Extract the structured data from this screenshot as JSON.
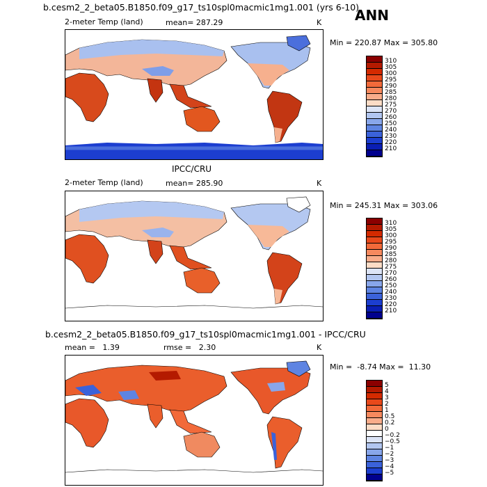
{
  "season": "ANN",
  "model_title": "b.cesm2_2_beta05.B1850.f09_g17_ts10spl0macmic1mg1.001 (yrs 6-10)",
  "panels": [
    {
      "variable": "2-meter Temp (land)",
      "mean_text": "mean= 287.29",
      "units": "K",
      "minmax": "Min = 220.87 Max = 305.80",
      "levels": [
        "310",
        "305",
        "300",
        "295",
        "290",
        "285",
        "280",
        "275",
        "270",
        "260",
        "250",
        "240",
        "230",
        "220",
        "210"
      ],
      "colors": [
        "#8b0000",
        "#b41a00",
        "#d42a00",
        "#e8491b",
        "#f26a3a",
        "#f6895e",
        "#f9ac8a",
        "#fcdcc6",
        "#dce4f6",
        "#b2c6f0",
        "#88a6ea",
        "#5e84e2",
        "#3b62da",
        "#1c3ed0",
        "#0a1eb4",
        "#00008e"
      ]
    },
    {
      "heading": "IPCC/CRU",
      "variable": "2-meter Temp (land)",
      "mean_text": "mean= 285.90",
      "units": "K",
      "minmax": "Min = 245.31 Max = 303.06",
      "levels": [
        "310",
        "305",
        "300",
        "295",
        "290",
        "285",
        "280",
        "275",
        "270",
        "260",
        "250",
        "240",
        "230",
        "220",
        "210"
      ],
      "colors": [
        "#8b0000",
        "#b41a00",
        "#d42a00",
        "#e8491b",
        "#f26a3a",
        "#f6895e",
        "#f9ac8a",
        "#fcdcc6",
        "#dce4f6",
        "#b2c6f0",
        "#88a6ea",
        "#5e84e2",
        "#3b62da",
        "#1c3ed0",
        "#0a1eb4",
        "#00008e"
      ]
    },
    {
      "heading": "b.cesm2_2_beta05.B1850.f09_g17_ts10spl0macmic1mg1.001 - IPCC/CRU",
      "mean_text": "mean =   1.39",
      "rmse_text": "rmse =   2.30",
      "units": "K",
      "minmax": "Min =  -8.74 Max =  11.30",
      "levels": [
        "5",
        "4",
        "3",
        "2",
        "1",
        "0.5",
        "0.2",
        "0",
        "−0.2",
        "−0.5",
        "−1",
        "−2",
        "−3",
        "−4",
        "−5"
      ],
      "colors": [
        "#8b0000",
        "#b41a00",
        "#d42a00",
        "#e8491b",
        "#f26a3a",
        "#f6895e",
        "#f9ac8a",
        "#fcdcc6",
        "#ffffff",
        "#dce4f6",
        "#b2c6f0",
        "#88a6ea",
        "#5e84e2",
        "#3b62da",
        "#1c3ed0",
        "#00008e"
      ]
    }
  ],
  "chart_data": [
    {
      "type": "heatmap",
      "title": "2-meter Temp (land) — model (yrs 6-10)",
      "mean": 287.29,
      "min": 220.87,
      "max": 305.8,
      "units": "K",
      "colorbar_levels": [
        210,
        220,
        230,
        240,
        250,
        260,
        270,
        275,
        280,
        285,
        290,
        295,
        300,
        305,
        310
      ]
    },
    {
      "type": "heatmap",
      "title": "2-meter Temp (land) — IPCC/CRU",
      "mean": 285.9,
      "min": 245.31,
      "max": 303.06,
      "units": "K",
      "colorbar_levels": [
        210,
        220,
        230,
        240,
        250,
        260,
        270,
        275,
        280,
        285,
        290,
        295,
        300,
        305,
        310
      ]
    },
    {
      "type": "heatmap",
      "title": "model - IPCC/CRU",
      "mean": 1.39,
      "rmse": 2.3,
      "min": -8.74,
      "max": 11.3,
      "units": "K",
      "colorbar_levels": [
        -5,
        -4,
        -3,
        -2,
        -1,
        -0.5,
        -0.2,
        0,
        0.2,
        0.5,
        1,
        2,
        3,
        4,
        5
      ]
    }
  ]
}
